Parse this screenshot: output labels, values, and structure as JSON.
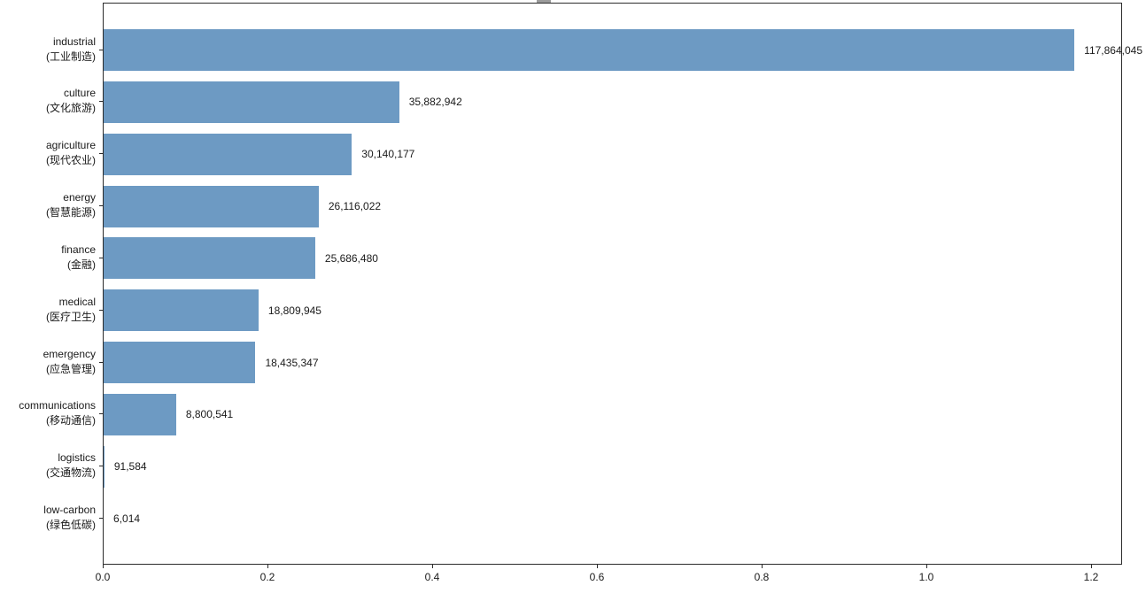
{
  "figure": {
    "background": "#ffffff",
    "bar_color": "#6d9ac3",
    "spine_color": "#2b2b2b",
    "text_color": "#1a1a1a"
  },
  "chart_data": {
    "type": "bar",
    "orientation": "horizontal",
    "title": "",
    "xlabel": "",
    "ylabel": "",
    "grid": false,
    "legend": null,
    "value_scale_factor": 100000000,
    "xlim": [
      0,
      1.2376
    ],
    "x_ticks": [
      {
        "value": 0.0,
        "label": "0.0"
      },
      {
        "value": 0.2,
        "label": "0.2"
      },
      {
        "value": 0.4,
        "label": "0.4"
      },
      {
        "value": 0.6,
        "label": "0.6"
      },
      {
        "value": 0.8,
        "label": "0.8"
      },
      {
        "value": 1.0,
        "label": "1.0"
      },
      {
        "value": 1.2,
        "label": "1.2"
      }
    ],
    "categories": [
      {
        "label_en": "industrial",
        "label_zh": "(工业制造)"
      },
      {
        "label_en": "culture",
        "label_zh": "(文化旅游)"
      },
      {
        "label_en": "agriculture",
        "label_zh": "(现代农业)"
      },
      {
        "label_en": "energy",
        "label_zh": "(智慧能源)"
      },
      {
        "label_en": "finance",
        "label_zh": "(金融)"
      },
      {
        "label_en": "medical",
        "label_zh": "(医疗卫生)"
      },
      {
        "label_en": "emergency",
        "label_zh": "(应急管理)"
      },
      {
        "label_en": "communications",
        "label_zh": "(移动通信)"
      },
      {
        "label_en": "logistics",
        "label_zh": "(交通物流)"
      },
      {
        "label_en": "low-carbon",
        "label_zh": "(绿色低碳)"
      }
    ],
    "values": [
      117864045,
      35882942,
      30140177,
      26116022,
      25686480,
      18809945,
      18435347,
      8800541,
      91584,
      6014
    ],
    "value_labels": [
      "117,864,045",
      "35,882,942",
      "30,140,177",
      "26,116,022",
      "25,686,480",
      "18,809,945",
      "18,435,347",
      "8,800,541",
      "91,584",
      "6,014"
    ]
  }
}
